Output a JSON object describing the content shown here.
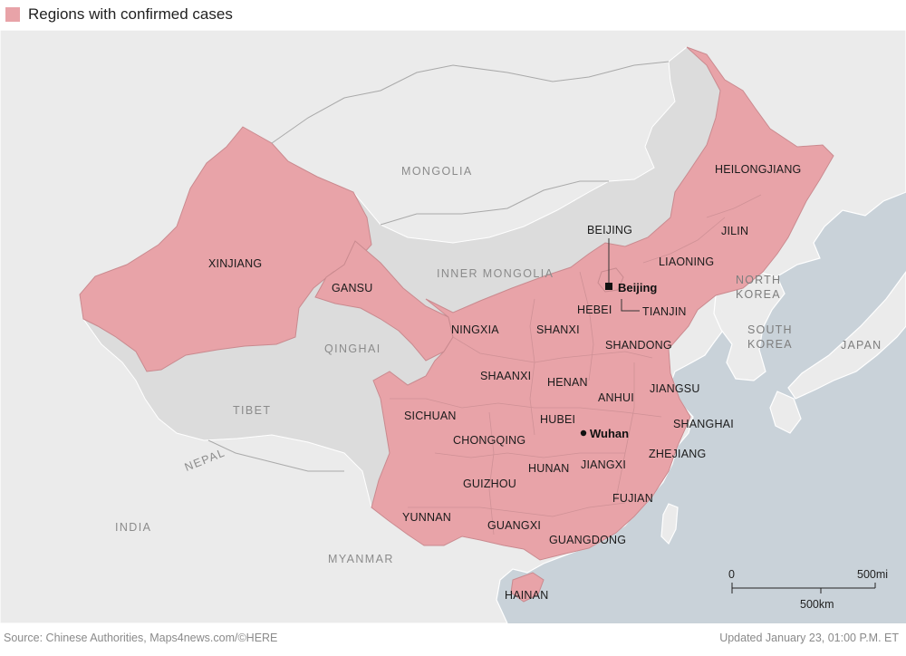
{
  "legend": {
    "label": "Regions with confirmed cases",
    "color": "#e8a3a8"
  },
  "colors": {
    "sea": "#c9d2d9",
    "land": "#ebebeb",
    "china_other": "#dcdcdc",
    "affected": "#e8a3a8",
    "affected_border": "#c98a8f"
  },
  "countries": {
    "mongolia": "MONGOLIA",
    "inner_mongolia": "INNER MONGOLIA",
    "qinghai": "QINGHAI",
    "tibet": "TIBET",
    "nepal": "NEPAL",
    "india": "INDIA",
    "myanmar": "MYANMAR",
    "north_korea_1": "NORTH",
    "north_korea_2": "KOREA",
    "south_korea_1": "SOUTH",
    "south_korea_2": "KOREA",
    "japan": "JAPAN"
  },
  "regions": {
    "xinjiang": "XINJIANG",
    "gansu": "GANSU",
    "ningxia": "NINGXIA",
    "shanxi": "SHANXI",
    "hebei": "HEBEI",
    "beijing": "BEIJING",
    "tianjin": "TIANJIN",
    "liaoning": "LIAONING",
    "jilin": "JILIN",
    "heilongjiang": "HEILONGJIANG",
    "shandong": "SHANDONG",
    "shaanxi": "SHAANXI",
    "henan": "HENAN",
    "anhui": "ANHUI",
    "jiangsu": "JIANGSU",
    "shanghai": "SHANGHAI",
    "sichuan": "SICHUAN",
    "hubei": "HUBEI",
    "chongqing": "CHONGQING",
    "zhejiang": "ZHEJIANG",
    "hunan": "HUNAN",
    "jiangxi": "JIANGXI",
    "guizhou": "GUIZHOU",
    "fujian": "FUJIAN",
    "yunnan": "YUNNAN",
    "guangxi": "GUANGXI",
    "guangdong": "GUANGDONG",
    "hainan": "HAINAN"
  },
  "cities": {
    "beijing": "Beijing",
    "wuhan": "Wuhan"
  },
  "scale": {
    "zero": "0",
    "miles": "500mi",
    "km": "500km"
  },
  "footer": {
    "source": "Source: Chinese Authorities, Maps4news.com/©HERE",
    "updated": "Updated January 23, 01:00 P.M. ET"
  }
}
